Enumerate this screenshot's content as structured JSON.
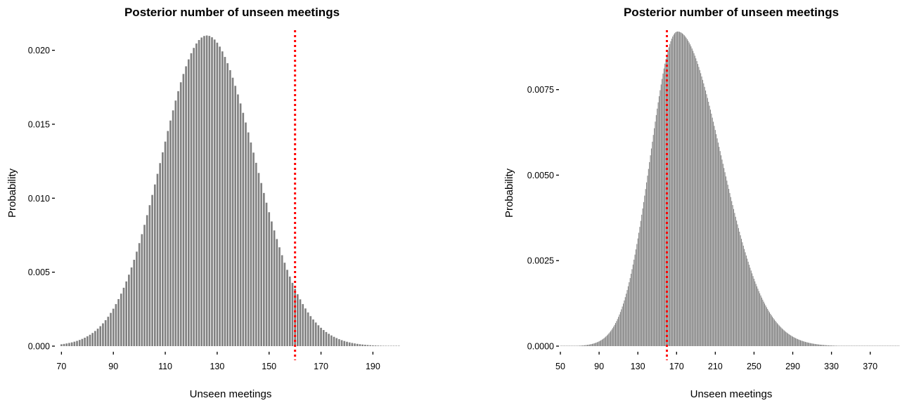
{
  "chart_data": [
    {
      "type": "bar",
      "title": "Posterior number of unseen meetings",
      "xlabel": "Unseen meetings",
      "ylabel": "Probability",
      "xticks": [
        "70",
        "90",
        "110",
        "130",
        "150",
        "170",
        "190"
      ],
      "yticks": [
        "0.000",
        "0.005",
        "0.010",
        "0.015",
        "0.020"
      ],
      "xlim": [
        68,
        201
      ],
      "ylim": [
        0,
        0.0215
      ],
      "grid": false,
      "bar_color": "#808080",
      "reference_line": {
        "x": 160,
        "color": "#ff0000",
        "style": "dotted"
      },
      "distribution": {
        "x_start": 70,
        "x_end": 200,
        "mode": 126,
        "peak": 0.021,
        "sd_left": 17.5,
        "sd_right": 18.5
      }
    },
    {
      "type": "bar",
      "title": "Posterior number of unseen meetings",
      "xlabel": "Unseen meetings",
      "ylabel": "Probability",
      "xticks": [
        "50",
        "90",
        "130",
        "170",
        "210",
        "250",
        "290",
        "330",
        "370"
      ],
      "yticks": [
        "0.0000",
        "0.0025",
        "0.0050",
        "0.0075"
      ],
      "xlim": [
        50,
        400
      ],
      "ylim": [
        0,
        0.0093
      ],
      "grid": false,
      "bar_color": "#808080",
      "reference_line": {
        "x": 160,
        "color": "#ff0000",
        "style": "dotted"
      },
      "distribution": {
        "x_start": 50,
        "x_end": 400,
        "mode": 171,
        "peak": 0.0092,
        "sd_left": 28,
        "sd_right": 45
      }
    }
  ]
}
